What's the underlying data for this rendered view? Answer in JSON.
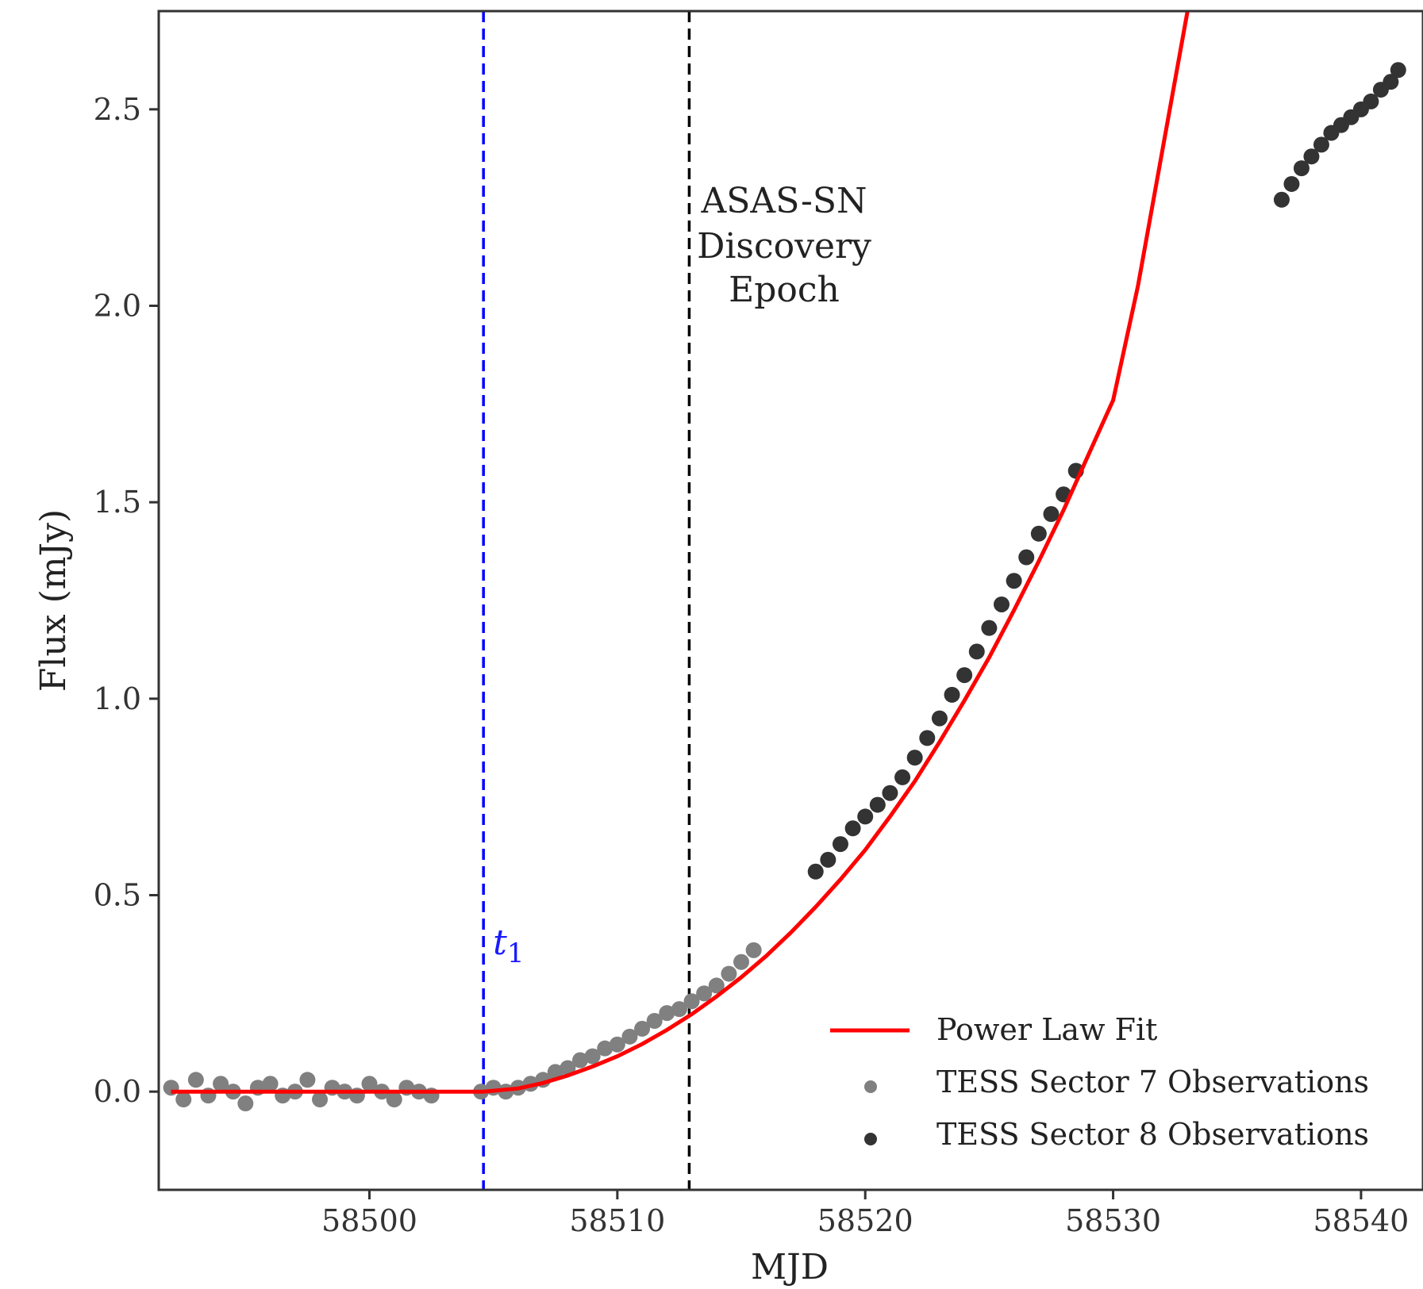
{
  "chart_data": {
    "type": "scatter",
    "title": "",
    "xlabel": "MJD",
    "ylabel": "Flux (mJy)",
    "xlim": [
      58491.5,
      58542.5
    ],
    "ylim": [
      -0.25,
      2.75
    ],
    "xticks": [
      58500,
      58510,
      58520,
      58530,
      58540
    ],
    "yticks": [
      0.0,
      0.5,
      1.0,
      1.5,
      2.0,
      2.5
    ],
    "x_tick_labels": [
      "58500",
      "58510",
      "58520",
      "58530",
      "58540"
    ],
    "y_tick_labels": [
      "0.0",
      "0.5",
      "1.0",
      "1.5",
      "2.0",
      "2.5"
    ],
    "grid": false,
    "legend_position": "lower-right",
    "legend": [
      "Power Law Fit",
      "TESS Sector 7 Observations",
      "TESS Sector 8 Observations"
    ],
    "vlines": [
      {
        "x": 58504.6,
        "color": "#0000ff",
        "style": "dashed",
        "label": "t1"
      },
      {
        "x": 58512.9,
        "color": "#000000",
        "style": "dashed",
        "label": "ASAS-SN Discovery Epoch"
      }
    ],
    "annotations": {
      "t1": "t",
      "t1_subscript": "1",
      "discovery_lines": [
        "ASAS-SN",
        "Discovery",
        "Epoch"
      ]
    },
    "series": [
      {
        "name": "Power Law Fit",
        "kind": "line",
        "color": "#ff0000",
        "x": [
          58492,
          58504.6,
          58506,
          58507,
          58508,
          58509,
          58510,
          58511,
          58512,
          58513,
          58514,
          58515,
          58516,
          58517,
          58518,
          58519,
          58520,
          58521,
          58522,
          58523,
          58524,
          58525,
          58526,
          58527,
          58528,
          58529,
          58530,
          58531,
          58532,
          58533
        ],
        "y": [
          0.0,
          0.0,
          0.008,
          0.022,
          0.041,
          0.064,
          0.09,
          0.121,
          0.157,
          0.197,
          0.242,
          0.291,
          0.345,
          0.405,
          0.47,
          0.54,
          0.615,
          0.7,
          0.79,
          0.89,
          0.995,
          1.105,
          1.225,
          1.35,
          1.48,
          1.62,
          1.76,
          2.05,
          2.4,
          2.75
        ]
      },
      {
        "name": "TESS Sector 7 Observations",
        "kind": "scatter",
        "color": "#808080",
        "x": [
          58492.0,
          58492.5,
          58493.0,
          58493.5,
          58494.0,
          58494.5,
          58495.0,
          58495.5,
          58496.0,
          58496.5,
          58497.0,
          58497.5,
          58498.0,
          58498.5,
          58499.0,
          58499.5,
          58500.0,
          58500.5,
          58501.0,
          58501.5,
          58502.0,
          58502.5,
          58504.5,
          58505.0,
          58505.5,
          58506.0,
          58506.5,
          58507.0,
          58507.5,
          58508.0,
          58508.5,
          58509.0,
          58509.5,
          58510.0,
          58510.5,
          58511.0,
          58511.5,
          58512.0,
          58512.5,
          58513.0,
          58513.5,
          58514.0,
          58514.5,
          58515.0,
          58515.5
        ],
        "y": [
          0.01,
          -0.02,
          0.03,
          -0.01,
          0.02,
          0.0,
          -0.03,
          0.01,
          0.02,
          -0.01,
          0.0,
          0.03,
          -0.02,
          0.01,
          0.0,
          -0.01,
          0.02,
          0.0,
          -0.02,
          0.01,
          0.0,
          -0.01,
          0.0,
          0.01,
          0.0,
          0.01,
          0.02,
          0.03,
          0.05,
          0.06,
          0.08,
          0.09,
          0.11,
          0.12,
          0.14,
          0.16,
          0.18,
          0.2,
          0.21,
          0.23,
          0.25,
          0.27,
          0.3,
          0.33,
          0.36
        ]
      },
      {
        "name": "TESS Sector 8 Observations",
        "kind": "scatter",
        "color": "#333333",
        "x": [
          58518.0,
          58518.5,
          58519.0,
          58519.5,
          58520.0,
          58520.5,
          58521.0,
          58521.5,
          58522.0,
          58522.5,
          58523.0,
          58523.5,
          58524.0,
          58524.5,
          58525.0,
          58525.5,
          58526.0,
          58526.5,
          58527.0,
          58527.5,
          58528.0,
          58528.5,
          58536.8,
          58537.2,
          58537.6,
          58538.0,
          58538.4,
          58538.8,
          58539.2,
          58539.6,
          58540.0,
          58540.4,
          58540.8,
          58541.2,
          58541.5
        ],
        "y": [
          0.56,
          0.59,
          0.63,
          0.67,
          0.7,
          0.73,
          0.76,
          0.8,
          0.85,
          0.9,
          0.95,
          1.01,
          1.06,
          1.12,
          1.18,
          1.24,
          1.3,
          1.36,
          1.42,
          1.47,
          1.52,
          1.58,
          2.27,
          2.31,
          2.35,
          2.38,
          2.41,
          2.44,
          2.46,
          2.48,
          2.5,
          2.52,
          2.55,
          2.57,
          2.6
        ]
      }
    ]
  }
}
